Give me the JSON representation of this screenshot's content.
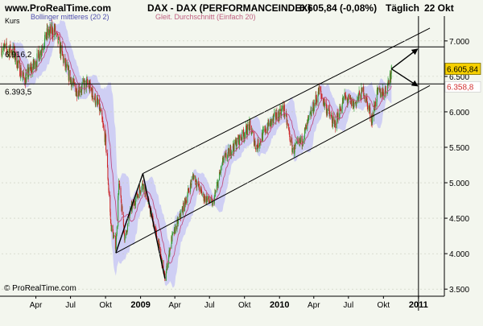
{
  "header": {
    "site": "www.ProRealTime.com",
    "instrument": "DAX - DAX (PERFORMANCEINDEX)",
    "last_change": "6.605,84 (-0,08%)",
    "period": "Täglich",
    "date": "22 Okt"
  },
  "legend": {
    "price_label": "Kurs",
    "bollinger_label": "Bollinger mittleres (20 2)",
    "ma_label": "Gleit. Durchschnitt (Einfach 20)"
  },
  "footer": {
    "copyright": "© ProRealTime.com"
  },
  "colors": {
    "background": "#f3f6ee",
    "band_fill": "#c8c8f5",
    "up_candle": "#2f9e2f",
    "down_candle": "#cc2222",
    "ma_line": "#c05080",
    "trend_line": "#000000",
    "last_price_box": "#f6d000",
    "ma_price_text": "#d23030"
  },
  "chart_data": {
    "type": "candlestick",
    "x_tick_labels": [
      "Apr",
      "Jul",
      "Okt",
      "2009",
      "Apr",
      "Jul",
      "Okt",
      "2010",
      "Apr",
      "Jul",
      "Okt",
      "2011"
    ],
    "y_tick_labels": [
      "3.500",
      "4.000",
      "4.500",
      "5.000",
      "5.500",
      "6.000",
      "6.500",
      "7.000"
    ],
    "ylim": [
      3400,
      7350
    ],
    "price_path": [
      [
        "2008-01-02",
        6900
      ],
      [
        "2008-02-01",
        6850
      ],
      [
        "2008-03-01",
        6450
      ],
      [
        "2008-04-01",
        6700
      ],
      [
        "2008-05-01",
        7100
      ],
      [
        "2008-05-20",
        7150
      ],
      [
        "2008-06-20",
        6600
      ],
      [
        "2008-07-15",
        6300
      ],
      [
        "2008-08-15",
        6400
      ],
      [
        "2008-09-15",
        6050
      ],
      [
        "2008-10-01",
        5600
      ],
      [
        "2008-10-15",
        4400
      ],
      [
        "2008-10-28",
        4100
      ],
      [
        "2008-11-05",
        5000
      ],
      [
        "2008-11-21",
        4200
      ],
      [
        "2008-12-05",
        4600
      ],
      [
        "2009-01-07",
        5000
      ],
      [
        "2009-02-15",
        4200
      ],
      [
        "2009-03-06",
        3650
      ],
      [
        "2009-03-23",
        4200
      ],
      [
        "2009-04-20",
        4600
      ],
      [
        "2009-05-20",
        5100
      ],
      [
        "2009-06-15",
        4800
      ],
      [
        "2009-07-10",
        4700
      ],
      [
        "2009-08-05",
        5300
      ],
      [
        "2009-09-01",
        5500
      ],
      [
        "2009-10-15",
        5800
      ],
      [
        "2009-11-01",
        5500
      ],
      [
        "2009-12-01",
        5800
      ],
      [
        "2010-01-12",
        6050
      ],
      [
        "2010-02-05",
        5450
      ],
      [
        "2010-03-01",
        5600
      ],
      [
        "2010-04-15",
        6300
      ],
      [
        "2010-05-25",
        5800
      ],
      [
        "2010-06-20",
        6200
      ],
      [
        "2010-07-15",
        6100
      ],
      [
        "2010-08-10",
        6300
      ],
      [
        "2010-08-31",
        5900
      ],
      [
        "2010-09-15",
        6250
      ],
      [
        "2010-10-08",
        6300
      ],
      [
        "2010-10-22",
        6606
      ]
    ],
    "last_price": "6.605,84",
    "ma_value": "6.358,8",
    "horizontal_levels": [
      {
        "label": "6.916,2",
        "value": 6916.2
      },
      {
        "label": "6.393,5",
        "value": 6393.5
      }
    ],
    "trend_channel": {
      "upper": [
        [
          "2009-01-07",
          5130
        ],
        [
          "2011-01-31",
          7180
        ]
      ],
      "lower": [
        [
          "2008-10-28",
          4010
        ],
        [
          "2011-01-31",
          6370
        ]
      ]
    },
    "wedge_lines": [
      [
        [
          "2009-01-07",
          5130
        ],
        [
          "2009-03-06",
          3650
        ]
      ],
      [
        [
          "2008-10-28",
          4010
        ],
        [
          "2009-01-07",
          5130
        ]
      ]
    ],
    "projection_arrows": [
      [
        [
          "2010-10-22",
          6606
        ],
        [
          "2010-12-28",
          6880
        ]
      ],
      [
        [
          "2010-10-22",
          6606
        ],
        [
          "2010-12-28",
          6370
        ]
      ]
    ],
    "vertical_marker": "2011-01-01"
  }
}
